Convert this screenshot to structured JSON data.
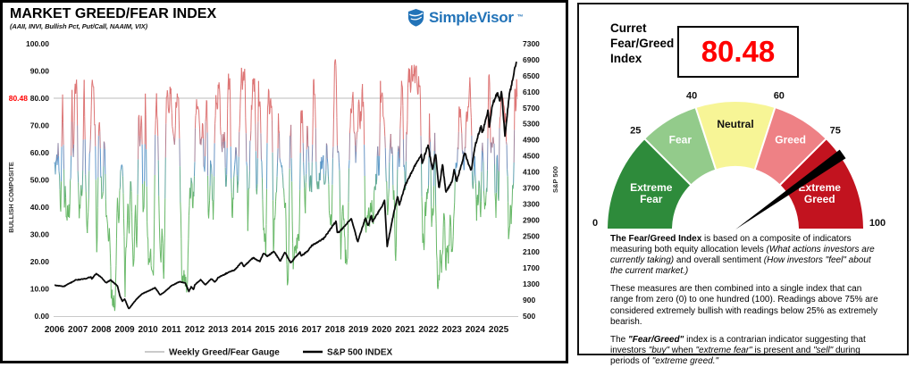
{
  "left_panel": {
    "title": "MARKET GREED/FEAR INDEX",
    "subtitle": "(AAII, INVI, Bullish Pct, Put/Call, NAAIM, VIX)",
    "logo": {
      "text": "SimpleVisor",
      "tm": "™",
      "color": "#2273b8"
    }
  },
  "chart_data": {
    "type": "line",
    "title": "MARKET GREED/FEAR INDEX",
    "x_axis": {
      "min": 2006,
      "max": 2025.83,
      "ticks": [
        2006,
        2007,
        2008,
        2009,
        2010,
        2011,
        2012,
        2013,
        2014,
        2015,
        2016,
        2017,
        2018,
        2019,
        2020,
        2021,
        2022,
        2023,
        2024,
        2025
      ]
    },
    "y_left": {
      "label": "BULLISH COMPOSITE",
      "min": 0,
      "max": 100,
      "ticks": [
        100,
        90,
        80,
        70,
        60,
        50,
        40,
        30,
        20,
        10,
        0
      ]
    },
    "y_right": {
      "label": "S&P 500",
      "min": 500,
      "max": 7300,
      "ticks": [
        7300,
        6900,
        6500,
        6100,
        5700,
        5300,
        4900,
        4500,
        4100,
        3700,
        3300,
        2900,
        2500,
        2100,
        1700,
        1300,
        900,
        500
      ]
    },
    "threshold": {
      "value": 80,
      "label": "80.48",
      "label_color": "#ff0000",
      "line_color": "#bbbbbb"
    },
    "series": [
      {
        "name": "Weekly Greed/Fear Gauge",
        "axis": "left",
        "render": "colored-by-value",
        "color_stops": [
          [
            44,
            "#68b868"
          ],
          [
            56,
            "#5b97cd"
          ],
          [
            68,
            "#dd7474"
          ]
        ],
        "envelope": [
          [
            2006.0,
            38,
            86
          ],
          [
            2006.5,
            34,
            80
          ],
          [
            2007.0,
            34,
            90
          ],
          [
            2007.6,
            28,
            88
          ],
          [
            2008.0,
            14,
            68
          ],
          [
            2008.6,
            1,
            52
          ],
          [
            2009.0,
            4,
            58
          ],
          [
            2009.5,
            22,
            76
          ],
          [
            2010.0,
            16,
            86
          ],
          [
            2010.6,
            8,
            80
          ],
          [
            2011.0,
            22,
            88
          ],
          [
            2011.65,
            8,
            78
          ],
          [
            2012.0,
            24,
            82
          ],
          [
            2012.5,
            30,
            84
          ],
          [
            2013.0,
            38,
            88
          ],
          [
            2013.5,
            34,
            90
          ],
          [
            2014.0,
            32,
            92
          ],
          [
            2014.6,
            28,
            88
          ],
          [
            2015.0,
            22,
            86
          ],
          [
            2015.7,
            12,
            76
          ],
          [
            2016.1,
            10,
            72
          ],
          [
            2016.5,
            28,
            82
          ],
          [
            2017.0,
            44,
            90
          ],
          [
            2017.5,
            48,
            94
          ],
          [
            2018.05,
            22,
            95
          ],
          [
            2018.8,
            14,
            82
          ],
          [
            2019.0,
            26,
            86
          ],
          [
            2019.5,
            32,
            90
          ],
          [
            2020.0,
            34,
            86
          ],
          [
            2020.22,
            2,
            55
          ],
          [
            2020.5,
            16,
            76
          ],
          [
            2021.0,
            38,
            94
          ],
          [
            2021.5,
            36,
            92
          ],
          [
            2022.0,
            16,
            76
          ],
          [
            2022.5,
            8,
            66
          ],
          [
            2023.0,
            22,
            76
          ],
          [
            2023.5,
            26,
            86
          ],
          [
            2024.0,
            34,
            92
          ],
          [
            2024.5,
            30,
            90
          ],
          [
            2025.0,
            36,
            88
          ],
          [
            2025.3,
            22,
            76
          ],
          [
            2025.77,
            45,
            92
          ]
        ],
        "noise": {
          "seed": 90210,
          "momentum": 0.74,
          "impulse": 9,
          "per_year": 52
        },
        "end_value": 80.48
      },
      {
        "name": "S&P 500 INDEX",
        "axis": "right",
        "color": "#0a0a0a",
        "width": 1.8,
        "anchors": [
          [
            2006.0,
            1270
          ],
          [
            2006.4,
            1240
          ],
          [
            2006.9,
            1400
          ],
          [
            2007.3,
            1430
          ],
          [
            2007.55,
            1480
          ],
          [
            2007.6,
            1430
          ],
          [
            2007.78,
            1560
          ],
          [
            2008.0,
            1470
          ],
          [
            2008.2,
            1330
          ],
          [
            2008.4,
            1400
          ],
          [
            2008.7,
            1250
          ],
          [
            2008.8,
            1000
          ],
          [
            2008.9,
            870
          ],
          [
            2009.0,
            930
          ],
          [
            2009.18,
            680
          ],
          [
            2009.5,
            920
          ],
          [
            2009.75,
            1060
          ],
          [
            2010.0,
            1120
          ],
          [
            2010.3,
            1210
          ],
          [
            2010.52,
            1030
          ],
          [
            2010.7,
            1100
          ],
          [
            2011.0,
            1260
          ],
          [
            2011.35,
            1360
          ],
          [
            2011.6,
            1320
          ],
          [
            2011.75,
            1120
          ],
          [
            2011.85,
            1230
          ],
          [
            2011.95,
            1160
          ],
          [
            2012.0,
            1280
          ],
          [
            2012.25,
            1410
          ],
          [
            2012.45,
            1280
          ],
          [
            2012.7,
            1430
          ],
          [
            2012.87,
            1350
          ],
          [
            2013.0,
            1460
          ],
          [
            2013.5,
            1610
          ],
          [
            2013.7,
            1650
          ],
          [
            2014.0,
            1840
          ],
          [
            2014.1,
            1740
          ],
          [
            2014.5,
            1960
          ],
          [
            2014.78,
            1860
          ],
          [
            2014.95,
            2080
          ],
          [
            2015.1,
            1990
          ],
          [
            2015.38,
            2120
          ],
          [
            2015.66,
            1870
          ],
          [
            2015.85,
            2100
          ],
          [
            2016.1,
            1830
          ],
          [
            2016.5,
            2100
          ],
          [
            2016.55,
            2000
          ],
          [
            2016.85,
            2130
          ],
          [
            2017.0,
            2260
          ],
          [
            2017.5,
            2430
          ],
          [
            2018.05,
            2870
          ],
          [
            2018.1,
            2580
          ],
          [
            2018.25,
            2640
          ],
          [
            2018.7,
            2930
          ],
          [
            2018.97,
            2350
          ],
          [
            2019.3,
            2950
          ],
          [
            2019.42,
            2750
          ],
          [
            2019.55,
            3020
          ],
          [
            2019.6,
            2850
          ],
          [
            2020.0,
            3230
          ],
          [
            2020.12,
            3380
          ],
          [
            2020.23,
            2240
          ],
          [
            2020.45,
            2900
          ],
          [
            2020.68,
            3500
          ],
          [
            2020.75,
            3270
          ],
          [
            2021.0,
            3760
          ],
          [
            2021.35,
            4180
          ],
          [
            2021.7,
            4540
          ],
          [
            2021.73,
            4310
          ],
          [
            2021.98,
            4790
          ],
          [
            2022.05,
            4520
          ],
          [
            2022.18,
            4170
          ],
          [
            2022.3,
            4580
          ],
          [
            2022.45,
            3670
          ],
          [
            2022.6,
            4290
          ],
          [
            2022.74,
            3590
          ],
          [
            2023.0,
            3850
          ],
          [
            2023.1,
            4150
          ],
          [
            2023.2,
            3860
          ],
          [
            2023.55,
            4580
          ],
          [
            2023.82,
            4120
          ],
          [
            2024.0,
            4770
          ],
          [
            2024.25,
            5250
          ],
          [
            2024.3,
            5050
          ],
          [
            2024.55,
            5660
          ],
          [
            2024.6,
            5190
          ],
          [
            2024.72,
            5760
          ],
          [
            2024.95,
            6090
          ],
          [
            2025.05,
            5850
          ],
          [
            2025.12,
            6140
          ],
          [
            2025.27,
            4980
          ],
          [
            2025.45,
            6000
          ],
          [
            2025.6,
            6400
          ],
          [
            2025.7,
            6700
          ],
          [
            2025.78,
            6890
          ]
        ],
        "noise": {
          "seed": 777,
          "jitter": 0.006,
          "per_year": 52
        }
      }
    ],
    "legend": [
      {
        "label": "Weekly Greed/Fear Gauge",
        "swatch": "#b8b8b8",
        "swatch_width": 1.5
      },
      {
        "label": "S&P 500 INDEX",
        "swatch": "#000000",
        "swatch_width": 2.5
      }
    ]
  },
  "right_panel": {
    "header_lines": [
      "Curret",
      "Fear/Greed",
      "Index"
    ],
    "current_value": "80.48",
    "value_color": "#ff0000",
    "gauge": {
      "min": 0,
      "max": 100,
      "segments": [
        {
          "from": 0,
          "to": 25,
          "color": "#2e8b3b",
          "label_lines": [
            "Extreme",
            "Fear"
          ],
          "text_color": "#ffffff"
        },
        {
          "from": 25,
          "to": 40,
          "color": "#93cb8b",
          "label_lines": [
            "Fear"
          ],
          "text_color": "#ffffff"
        },
        {
          "from": 40,
          "to": 60,
          "color": "#f7f596",
          "label_lines": [
            "Neutral"
          ],
          "text_color": "#111111"
        },
        {
          "from": 60,
          "to": 75,
          "color": "#ee8185",
          "label_lines": [
            "Greed"
          ],
          "text_color": "#ffffff"
        },
        {
          "from": 75,
          "to": 100,
          "color": "#c2131f",
          "label_lines": [
            "Extreme",
            "Greed"
          ],
          "text_color": "#ffffff"
        }
      ],
      "tick_values": [
        0,
        25,
        40,
        60,
        75,
        100
      ],
      "needle_value": 80.48,
      "needle_color": "#000000"
    },
    "paragraphs": [
      [
        {
          "t": "The Fear/Greed Index",
          "b": true
        },
        {
          "t": " is based on a composite of indicators measuring both equity allocation levels "
        },
        {
          "t": "(What actions investors are currently taking)",
          "i": true
        },
        {
          "t": " and overall sentiment "
        },
        {
          "t": "(How investors \"feel\" about the current market.)",
          "i": true
        }
      ],
      [
        {
          "t": "These measures are then combined into a single index that can range from zero (0) to one hundred (100). Readings above 75% are considered extremely bullish with readings below 25% as extremely bearish."
        }
      ],
      [
        {
          "t": "The "
        },
        {
          "t": "\"Fear/Greed\"",
          "b": true,
          "i": true
        },
        {
          "t": " index is a contrarian indicator suggesting that investors "
        },
        {
          "t": "\"buy\"",
          "i": true
        },
        {
          "t": " when "
        },
        {
          "t": "\"extreme fear\"",
          "i": true
        },
        {
          "t": " is present and "
        },
        {
          "t": "\"sell\"",
          "i": true
        },
        {
          "t": " during periods of "
        },
        {
          "t": "\"extreme greed.\"",
          "i": true
        }
      ]
    ]
  }
}
